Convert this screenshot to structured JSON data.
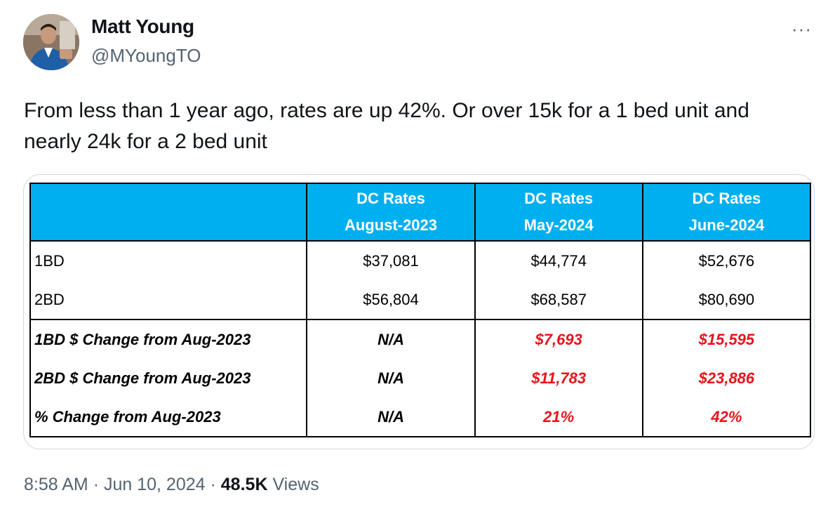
{
  "author": {
    "name": "Matt Young",
    "handle": "@MYoungTO"
  },
  "more_label": "···",
  "tweet": {
    "text": "From less than 1 year ago, rates are up 42%. Or over 15k for a 1 bed unit and nearly 24k for a 2 bed unit"
  },
  "table": {
    "headers": [
      {
        "line1": "",
        "line2": ""
      },
      {
        "line1": "DC Rates",
        "line2": "August-2023"
      },
      {
        "line1": "DC Rates",
        "line2": "May-2024"
      },
      {
        "line1": "DC Rates",
        "line2": "June-2024"
      }
    ],
    "rows": [
      {
        "label": "1BD",
        "values": [
          "$37,081",
          "$44,774",
          "$52,676"
        ]
      },
      {
        "label": "2BD",
        "values": [
          "$56,804",
          "$68,587",
          "$80,690"
        ]
      },
      {
        "label": "1BD $ Change from Aug-2023",
        "values": [
          "N/A",
          "$7,693",
          "$15,595"
        ]
      },
      {
        "label": "2BD $ Change from Aug-2023",
        "values": [
          "N/A",
          "$11,783",
          "$23,886"
        ]
      },
      {
        "label": "% Change from Aug-2023",
        "values": [
          "N/A",
          "21%",
          "42%"
        ]
      }
    ]
  },
  "meta": {
    "time": "8:58 AM",
    "sep1": "·",
    "date": "Jun 10, 2024",
    "sep2": "·",
    "views_count": "48.5K",
    "views_label": "Views"
  },
  "colors": {
    "header_bg": "#00aff0",
    "change_text": "#e8141b",
    "secondary_text": "#536471"
  }
}
